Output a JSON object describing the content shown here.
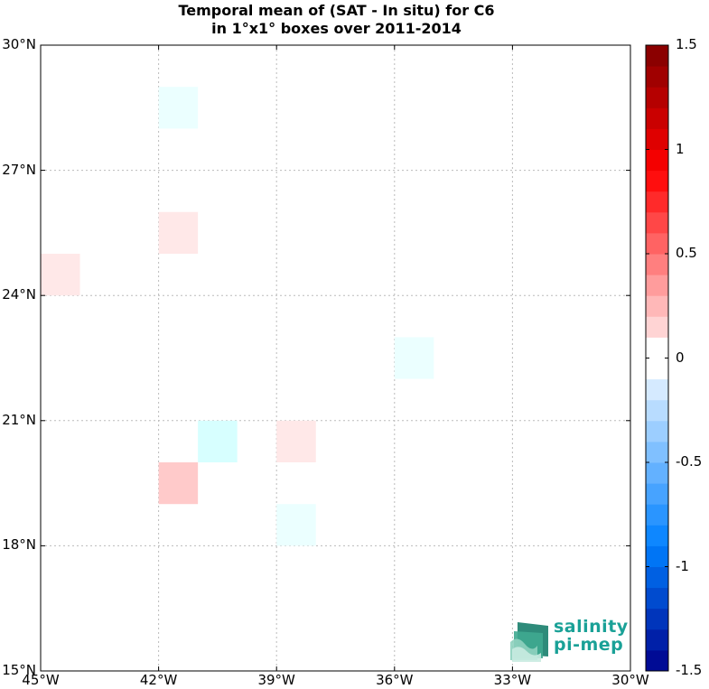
{
  "title": {
    "line1": "Temporal mean of (SAT - In situ) for C6",
    "line2": "in 1°x1° boxes over 2011-2014"
  },
  "map": {
    "lon_range": [
      -45,
      -30
    ],
    "lat_range": [
      15,
      30
    ],
    "grid": true,
    "lat_ticks": [
      {
        "value": 30,
        "label": "30°N"
      },
      {
        "value": 27,
        "label": "27°N"
      },
      {
        "value": 24,
        "label": "24°N"
      },
      {
        "value": 21,
        "label": "21°N"
      },
      {
        "value": 18,
        "label": "18°N"
      },
      {
        "value": 15,
        "label": "15°N"
      }
    ],
    "lon_ticks": [
      {
        "value": -45,
        "label": "45°W"
      },
      {
        "value": -42,
        "label": "42°W"
      },
      {
        "value": -39,
        "label": "39°W"
      },
      {
        "value": -36,
        "label": "36°W"
      },
      {
        "value": -33,
        "label": "33°W"
      },
      {
        "value": -30,
        "label": "30°W"
      }
    ]
  },
  "chart_data": {
    "type": "heatmap",
    "title": "Temporal mean of (SAT - In situ) for C6 in 1°x1° boxes over 2011-2014",
    "cell_size_deg": 1,
    "cells": [
      {
        "lon_min": -42,
        "lat_min": 28,
        "value": -0.15
      },
      {
        "lon_min": -42,
        "lat_min": 25,
        "value": 0.15
      },
      {
        "lon_min": -45,
        "lat_min": 24,
        "value": 0.15
      },
      {
        "lon_min": -36,
        "lat_min": 22,
        "value": -0.15
      },
      {
        "lon_min": -41,
        "lat_min": 20,
        "value": -0.3
      },
      {
        "lon_min": -39,
        "lat_min": 20,
        "value": 0.15
      },
      {
        "lon_min": -42,
        "lat_min": 19,
        "value": 0.35
      },
      {
        "lon_min": -39,
        "lat_min": 18,
        "value": -0.15
      }
    ],
    "colorbar": {
      "range": [
        -1.5,
        1.5
      ],
      "step": 0.1,
      "ticks": [
        {
          "value": 1.5,
          "label": "1.5"
        },
        {
          "value": 1,
          "label": "1"
        },
        {
          "value": 0.5,
          "label": "0.5"
        },
        {
          "value": 0,
          "label": "0"
        },
        {
          "value": -0.5,
          "label": "-0.5"
        },
        {
          "value": -1,
          "label": "-1"
        },
        {
          "value": -1.5,
          "label": "-1.5"
        }
      ]
    }
  },
  "logo": {
    "line1": "salinity",
    "line2": "pi-mep"
  },
  "colors": {
    "negative_max": "#00008b",
    "positive_max": "#800000"
  }
}
